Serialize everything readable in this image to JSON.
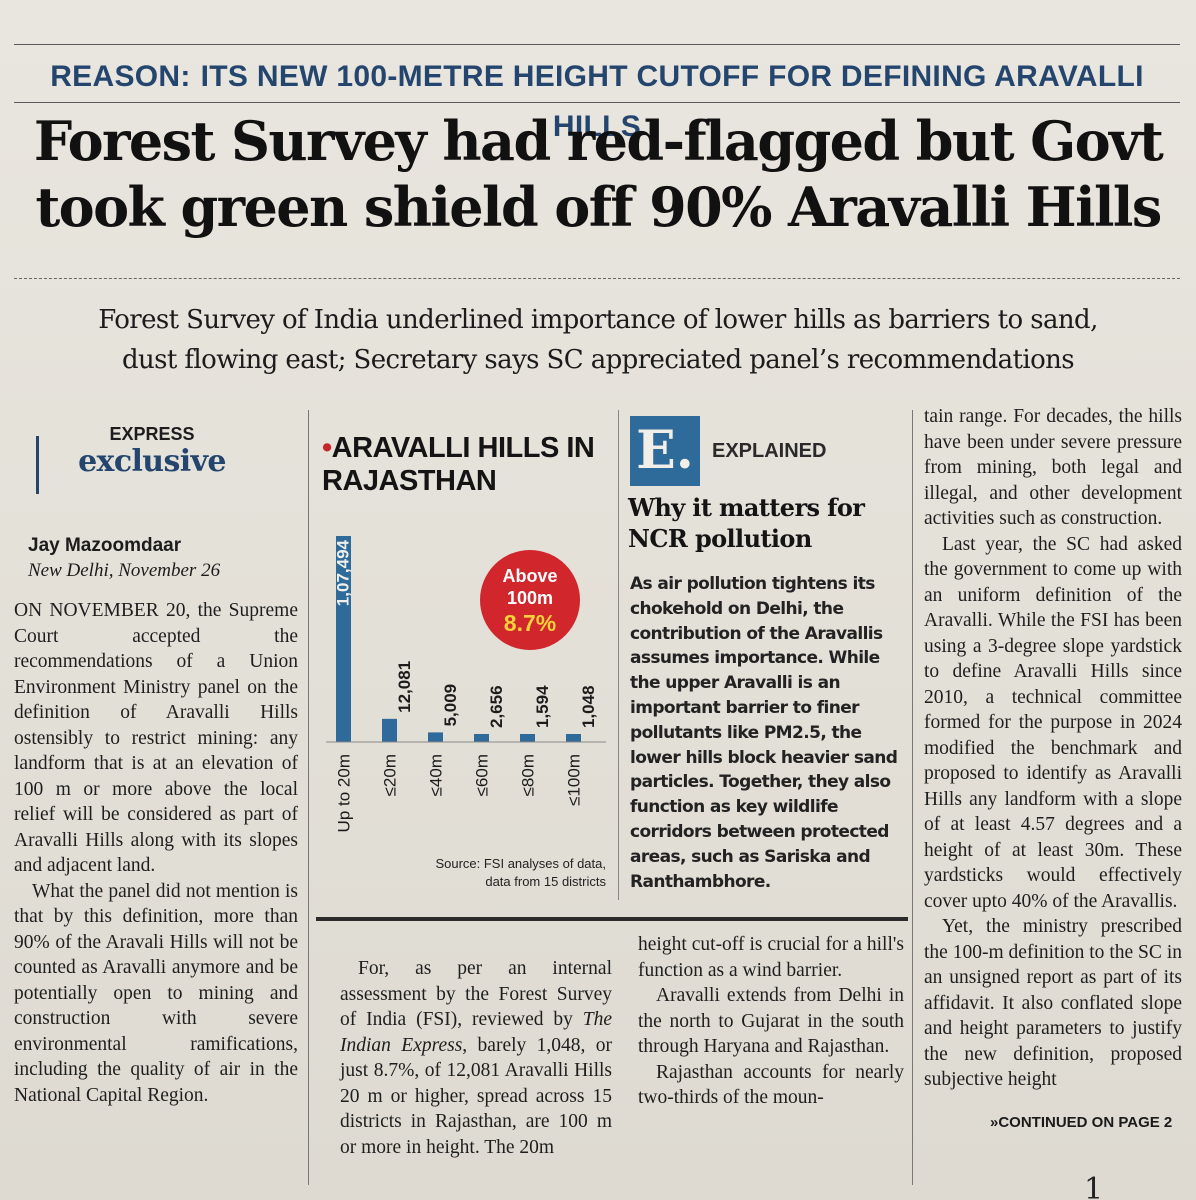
{
  "kicker": {
    "label": "REASON:",
    "text": "ITS NEW 100-METRE HEIGHT CUTOFF FOR DEFINING ARAVALLI HILLS"
  },
  "headline": {
    "line1": "Forest Survey had red-flagged but Govt",
    "line2": "took green shield off 90% Aravalli Hills"
  },
  "deck": {
    "line1": "Forest Survey of India underlined importance of lower hills as barriers to sand,",
    "line2": "dust flowing east; Secretary says SC appreciated panel’s recommendations"
  },
  "exclusive": {
    "top": "EXPRESS",
    "bottom": "exclusive"
  },
  "byline": {
    "name": "Jay Mazoomdaar",
    "dateline": "New Delhi, November 26"
  },
  "col1": {
    "p1": "ON NOVEMBER 20, the Supreme Court accepted the recommendations of a Union Environment Ministry panel on the definition of Aravalli Hills ostensibly to restrict mining: any landform that is at an elevation of 100 m or more above the local relief will be considered as part of Aravalli Hills along with its slopes and adjacent land.",
    "p2": "What the panel did not mention is that by this definition, more than 90% of the Aravali Hills will not be counted as Aravalli anymore and be potentially open to mining and construction with severe environmental ramifications, including the quality of air in the National Capital Region."
  },
  "chart_data": {
    "type": "bar",
    "title_dot": "•",
    "title": "ARAVALLI HILLS IN RAJASTHAN",
    "categories": [
      "Up to 20m",
      "≤20m",
      "≤40m",
      "≤60m",
      "≤80m",
      "≤100m"
    ],
    "values": [
      107494,
      12081,
      5009,
      2656,
      1594,
      1048
    ],
    "value_labels": [
      "1,07,494",
      "12,081",
      "5,009",
      "2,656",
      "1,594",
      "1,048"
    ],
    "bar_color": "#2e6a9a",
    "callout": {
      "line1": "Above",
      "line2": "100m",
      "value": "8.7%",
      "color": "#d0262c",
      "value_color": "#f4d23a"
    },
    "source": "Source: FSI analyses of data, data from 15 districts",
    "xlabel": "",
    "ylabel": "",
    "grid": false
  },
  "col2": {
    "p1_a": "For, as per an internal assessment by the Forest Survey of India (FSI), reviewed by ",
    "p1_em": "The Indian Express",
    "p1_b": ", barely 1,048, or just 8.7%, of 12,081 Aravalli Hills 20 m or higher, spread across 15 districts in Rajasthan, are 100 m or more in height. The 20m"
  },
  "explained": {
    "logo": "E.",
    "label": "EXPLAINED",
    "heading": "Why it matters for NCR pollution",
    "body": "As air pollution tightens its chokehold on Delhi, the contribution of the Aravallis assumes importance. While the upper Aravalli is an important barrier to finer pollutants like PM2.5, the lower hills block heavier sand particles. Together, they also function as key wildlife corridors between protected areas, such as Sariska and Ranthambhore."
  },
  "col3": {
    "p1": "height cut-off is crucial for a hill's function as a wind barrier.",
    "p2": "Aravalli extends from Delhi in the north to Gujarat in the south through Haryana and Rajasthan.",
    "p3": "Rajasthan accounts for nearly two-thirds of the moun-"
  },
  "col4": {
    "p1": "tain range. For decades, the hills have been under severe pressure from mining, both legal and illegal, and other development activities such as construction.",
    "p2": "Last year, the SC had asked the government to come up with an uniform definition of the Aravalli. While the FSI has been using a 3-degree slope yardstick to define Aravalli Hills since 2010, a technical committee formed for the purpose in 2024 modified the benchmark and proposed to identify as Aravalli Hills any landform with a slope of at least 4.57 degrees and a height of at least 30m. These yardsticks would effectively cover upto 40% of the Aravallis.",
    "p3": "Yet, the ministry prescribed the 100-m definition to the SC in an unsigned report as part of its affidavit. It also conflated slope and height parameters to justify the new definition, proposed subjective height"
  },
  "continued": "»CONTINUED ON PAGE 2",
  "folio": "1"
}
